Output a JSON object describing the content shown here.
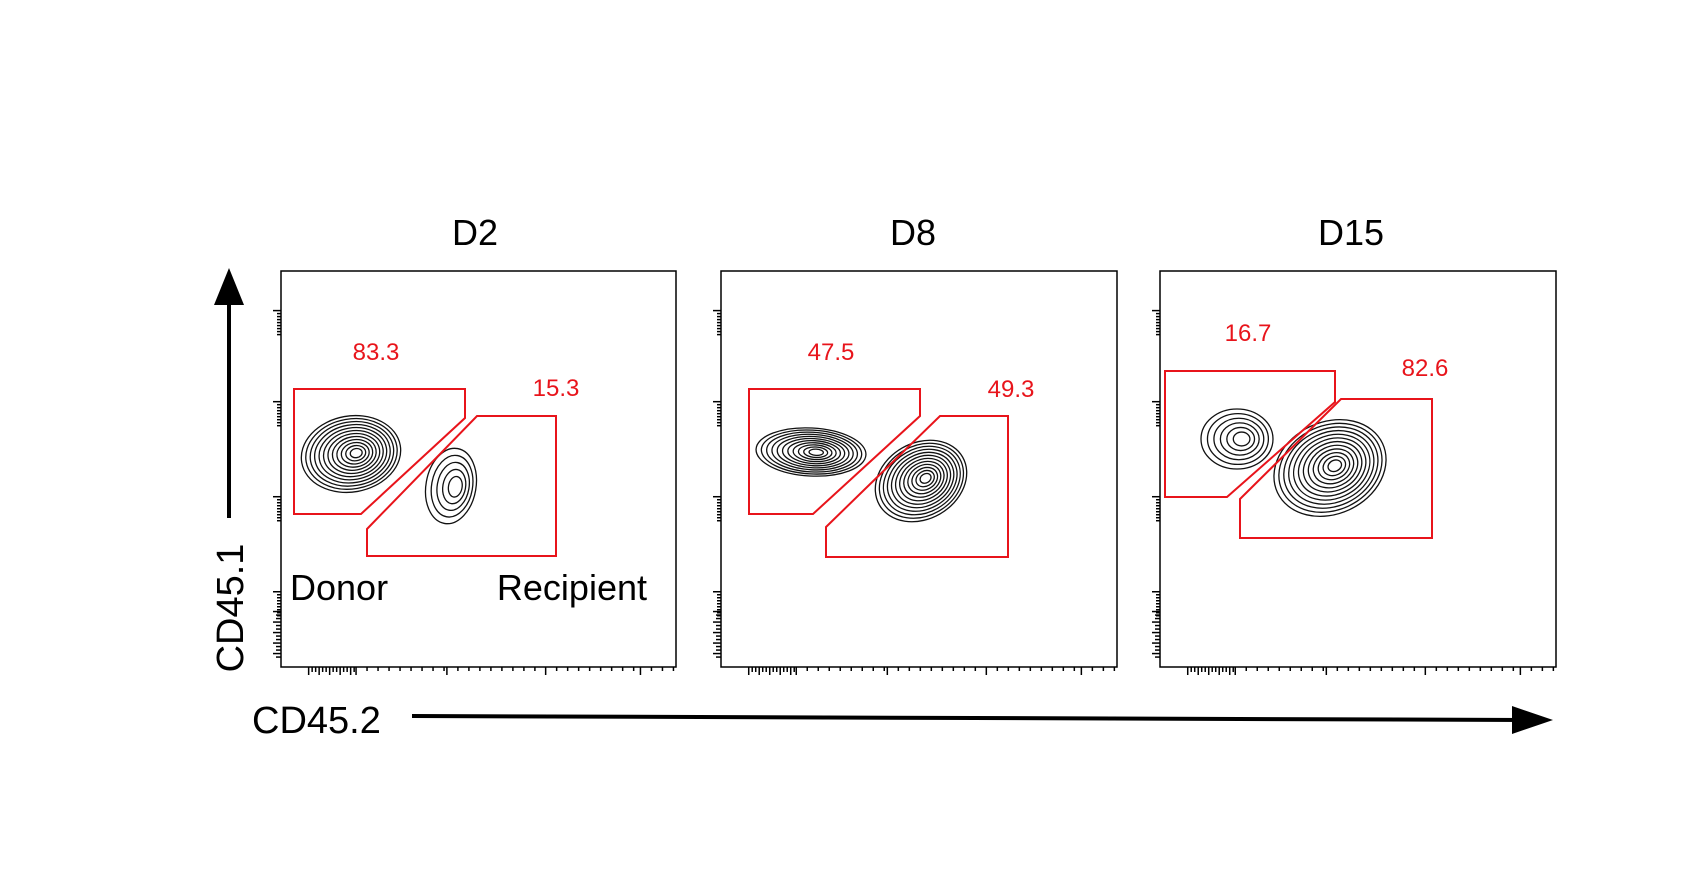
{
  "axes": {
    "y_label": "CD45.1",
    "x_label": "CD45.2"
  },
  "styles": {
    "gate_color": "#e8141b",
    "contour_color": "#111111",
    "frame_color": "#000000"
  },
  "chart_data": [
    {
      "type": "contour",
      "title": "D2",
      "gates": [
        {
          "name": "Donor",
          "label": "Donor",
          "percent": "83.3"
        },
        {
          "name": "Recipient",
          "label": "Recipient",
          "percent": "15.3"
        }
      ]
    },
    {
      "type": "contour",
      "title": "D8",
      "gates": [
        {
          "name": "Donor",
          "percent": "47.5"
        },
        {
          "name": "Recipient",
          "percent": "49.3"
        }
      ]
    },
    {
      "type": "contour",
      "title": "D15",
      "gates": [
        {
          "name": "Donor",
          "percent": "16.7"
        },
        {
          "name": "Recipient",
          "percent": "82.6"
        }
      ]
    }
  ]
}
